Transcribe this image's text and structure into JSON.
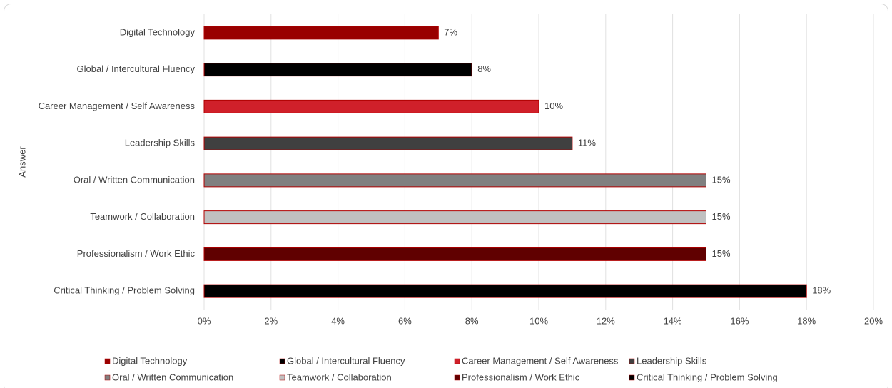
{
  "chart_data": {
    "type": "bar",
    "orientation": "horizontal",
    "y_label": "Answer",
    "categories": [
      "Digital Technology",
      "Global / Intercultural Fluency",
      "Career Management / Self Awareness",
      "Leadership Skills",
      "Oral / Written Communication",
      "Teamwork / Collaboration",
      "Professionalism / Work Ethic",
      "Critical Thinking / Problem Solving"
    ],
    "values": [
      7,
      8,
      10,
      11,
      15,
      15,
      15,
      18
    ],
    "value_labels": [
      "7%",
      "8%",
      "10%",
      "11%",
      "15%",
      "15%",
      "15%",
      "18%"
    ],
    "colors": [
      "#990000",
      "#000000",
      "#d0202a",
      "#404040",
      "#808080",
      "#c0c0c0",
      "#600000",
      "#000000"
    ],
    "xlim": [
      0,
      20
    ],
    "xticks": [
      {
        "value": 0,
        "label": "0%"
      },
      {
        "value": 2,
        "label": "2%"
      },
      {
        "value": 4,
        "label": "4%"
      },
      {
        "value": 6,
        "label": "6%"
      },
      {
        "value": 8,
        "label": "8%"
      },
      {
        "value": 10,
        "label": "10%"
      },
      {
        "value": 12,
        "label": "12%"
      },
      {
        "value": 14,
        "label": "14%"
      },
      {
        "value": 16,
        "label": "16%"
      },
      {
        "value": 18,
        "label": "18%"
      },
      {
        "value": 20,
        "label": "20%"
      }
    ],
    "grid": true,
    "legend": "bottom"
  }
}
